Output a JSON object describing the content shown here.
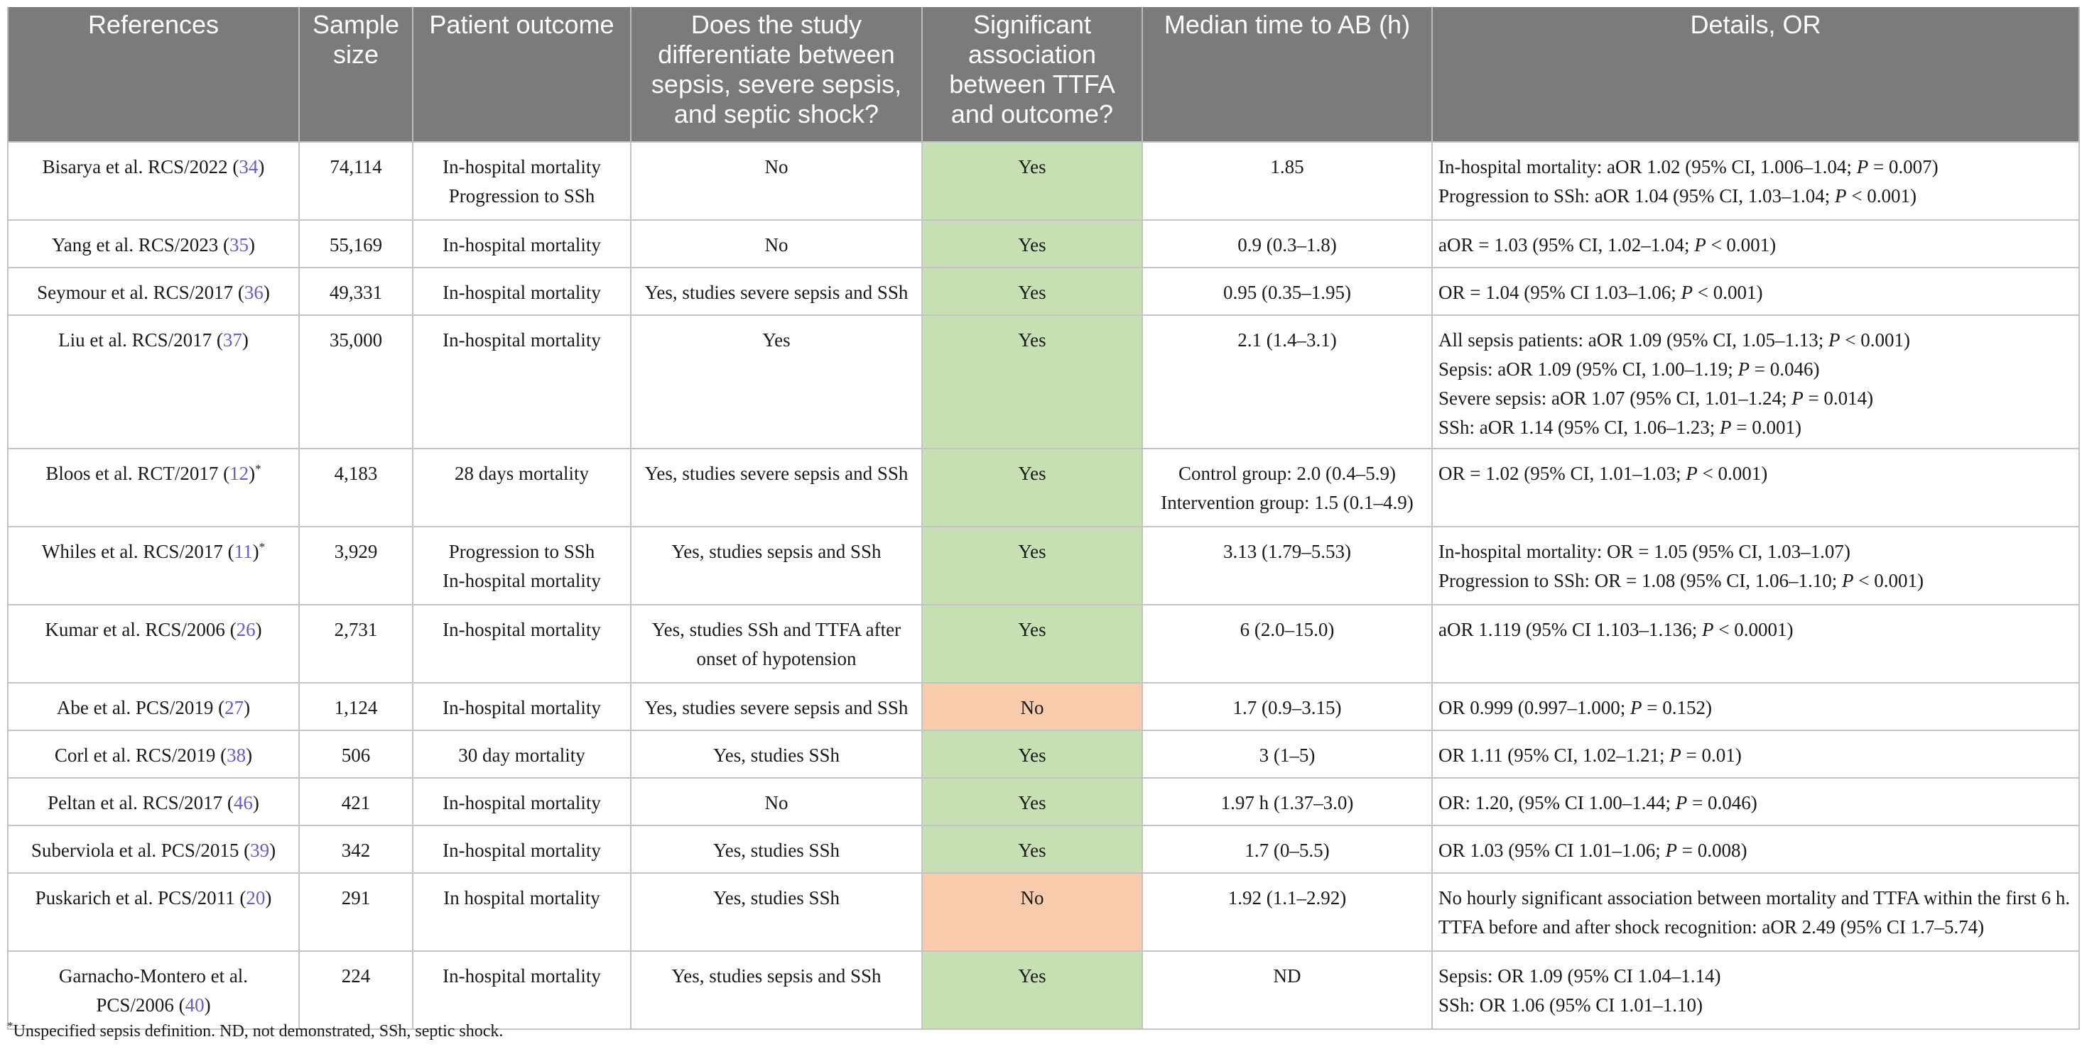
{
  "headers": [
    "References",
    "Sample size",
    "Patient outcome",
    "Does the study differentiate between sepsis, severe sepsis, and septic shock?",
    "Significant association between TTFA and outcome?",
    "Median time to AB (h)",
    "Details, OR"
  ],
  "rows": [
    {
      "ref_name": "Bisarya et al. RCS/2022 (",
      "ref_num": "34",
      "ref_close": ")",
      "ref_star": "",
      "ref_line2": "",
      "sample": "74,114",
      "outcome": [
        "In-hospital mortality",
        "Progression to SSh"
      ],
      "differentiate": "No",
      "significant": "Yes",
      "median": [
        "1.85"
      ],
      "details": [
        "In-hospital mortality: aOR 1.02 (95% CI, 1.006–1.04; P = 0.007)",
        "Progression to SSh: aOR 1.04 (95% CI, 1.03–1.04; P < 0.001)"
      ]
    },
    {
      "ref_name": "Yang et al. RCS/2023 (",
      "ref_num": "35",
      "ref_close": ")",
      "ref_star": "",
      "ref_line2": "",
      "sample": "55,169",
      "outcome": [
        "In-hospital mortality"
      ],
      "differentiate": "No",
      "significant": "Yes",
      "median": [
        "0.9 (0.3–1.8)"
      ],
      "details": [
        "aOR = 1.03 (95% CI, 1.02–1.04; P < 0.001)"
      ]
    },
    {
      "ref_name": "Seymour et al. RCS/2017 (",
      "ref_num": "36",
      "ref_close": ")",
      "ref_star": "",
      "ref_line2": "",
      "sample": "49,331",
      "outcome": [
        "In-hospital mortality"
      ],
      "differentiate": "Yes, studies severe sepsis and SSh",
      "significant": "Yes",
      "median": [
        "0.95 (0.35–1.95)"
      ],
      "details": [
        "OR = 1.04 (95% CI 1.03–1.06; P < 0.001)"
      ]
    },
    {
      "ref_name": "Liu et al. RCS/2017 (",
      "ref_num": "37",
      "ref_close": ")",
      "ref_star": "",
      "ref_line2": "",
      "sample": "35,000",
      "outcome": [
        "In-hospital mortality"
      ],
      "differentiate": "Yes",
      "significant": "Yes",
      "median": [
        "2.1 (1.4–3.1)"
      ],
      "details": [
        "All sepsis patients: aOR 1.09 (95% CI, 1.05–1.13; P < 0.001)",
        "Sepsis: aOR 1.09 (95% CI, 1.00–1.19; P = 0.046)",
        "Severe sepsis: aOR 1.07 (95% CI, 1.01–1.24; P = 0.014)",
        "SSh: aOR 1.14 (95% CI, 1.06–1.23; P = 0.001)"
      ]
    },
    {
      "ref_name": "Bloos et al. RCT/2017 (",
      "ref_num": "12",
      "ref_close": ")",
      "ref_star": "*",
      "ref_line2": "",
      "sample": "4,183",
      "outcome": [
        "28 days mortality"
      ],
      "differentiate": "Yes, studies severe sepsis and SSh",
      "significant": "Yes",
      "median": [
        "Control group: 2.0 (0.4–5.9)",
        "Intervention group: 1.5 (0.1–4.9)"
      ],
      "details": [
        "OR = 1.02 (95% CI, 1.01–1.03; P < 0.001)"
      ]
    },
    {
      "ref_name": "Whiles et al. RCS/2017 (",
      "ref_num": "11",
      "ref_close": ")",
      "ref_star": "*",
      "ref_line2": "",
      "sample": "3,929",
      "outcome": [
        "Progression to SSh",
        "In-hospital mortality"
      ],
      "differentiate": "Yes, studies sepsis and SSh",
      "significant": "Yes",
      "median": [
        "3.13 (1.79–5.53)"
      ],
      "details": [
        "In-hospital mortality: OR = 1.05 (95% CI, 1.03–1.07)",
        "Progression to SSh: OR = 1.08 (95% CI, 1.06–1.10; P < 0.001)"
      ]
    },
    {
      "ref_name": "Kumar et al. RCS/2006 (",
      "ref_num": "26",
      "ref_close": ")",
      "ref_star": "",
      "ref_line2": "",
      "sample": "2,731",
      "outcome": [
        "In-hospital mortality"
      ],
      "differentiate": "Yes, studies SSh and TTFA after onset of hypotension",
      "significant": "Yes",
      "median": [
        "6 (2.0–15.0)"
      ],
      "details": [
        "aOR 1.119 (95% CI 1.103–1.136; P < 0.0001)"
      ]
    },
    {
      "ref_name": "Abe et al. PCS/2019 (",
      "ref_num": "27",
      "ref_close": ")",
      "ref_star": "",
      "ref_line2": "",
      "sample": "1,124",
      "outcome": [
        "In-hospital mortality"
      ],
      "differentiate": "Yes, studies severe sepsis and SSh",
      "significant": "No",
      "median": [
        "1.7 (0.9–3.15)"
      ],
      "details": [
        "OR 0.999 (0.997–1.000; P = 0.152)"
      ]
    },
    {
      "ref_name": "Corl et al. RCS/2019 (",
      "ref_num": "38",
      "ref_close": ")",
      "ref_star": "",
      "ref_line2": "",
      "sample": "506",
      "outcome": [
        "30 day mortality"
      ],
      "differentiate": "Yes, studies SSh",
      "significant": "Yes",
      "median": [
        "3 (1–5)"
      ],
      "details": [
        "OR 1.11 (95% CI, 1.02–1.21; P = 0.01)"
      ]
    },
    {
      "ref_name": "Peltan et al. RCS/2017 (",
      "ref_num": "46",
      "ref_close": ")",
      "ref_star": "",
      "ref_line2": "",
      "sample": "421",
      "outcome": [
        "In-hospital mortality"
      ],
      "differentiate": "No",
      "significant": "Yes",
      "median": [
        "1.97 h (1.37–3.0)"
      ],
      "details": [
        "OR: 1.20, (95% CI 1.00–1.44; P = 0.046)"
      ]
    },
    {
      "ref_name": "Suberviola et al. PCS/2015 (",
      "ref_num": "39",
      "ref_close": ")",
      "ref_star": "",
      "ref_line2": "",
      "sample": "342",
      "outcome": [
        "In-hospital mortality"
      ],
      "differentiate": "Yes, studies SSh",
      "significant": "Yes",
      "median": [
        "1.7 (0–5.5)"
      ],
      "details": [
        "OR 1.03 (95% CI 1.01–1.06; P = 0.008)"
      ]
    },
    {
      "ref_name": "Puskarich et al. PCS/2011 (",
      "ref_num": "20",
      "ref_close": ")",
      "ref_star": "",
      "ref_line2": "",
      "sample": "291",
      "outcome": [
        "In hospital mortality"
      ],
      "differentiate": "Yes, studies SSh",
      "significant": "No",
      "median": [
        "1.92 (1.1–2.92)"
      ],
      "details": [
        "No hourly significant association between mortality and TTFA within the first 6 h.",
        "TTFA before and after shock recognition: aOR 2.49 (95% CI 1.7–5.74)"
      ]
    },
    {
      "ref_name": "Garnacho-Montero et al.",
      "ref_num": "40",
      "ref_close": ")",
      "ref_star": "",
      "ref_line2": "PCS/2006 (",
      "sample": "224",
      "outcome": [
        "In-hospital mortality"
      ],
      "differentiate": "Yes, studies sepsis and SSh",
      "significant": "Yes",
      "median": [
        "ND"
      ],
      "details": [
        "Sepsis: OR 1.09 (95% CI 1.04–1.14)",
        "SSh: OR 1.06 (95% CI 1.01–1.10)"
      ]
    }
  ],
  "footnote": {
    "star": "*",
    "text": "Unspecified sepsis definition. ND, not demonstrated, SSh, septic shock."
  },
  "colors": {
    "header_bg": "#7b7b7b",
    "yes_bg": "#c6e0b4",
    "no_bg": "#f8cbad",
    "ref_link": "#6a5acd"
  }
}
